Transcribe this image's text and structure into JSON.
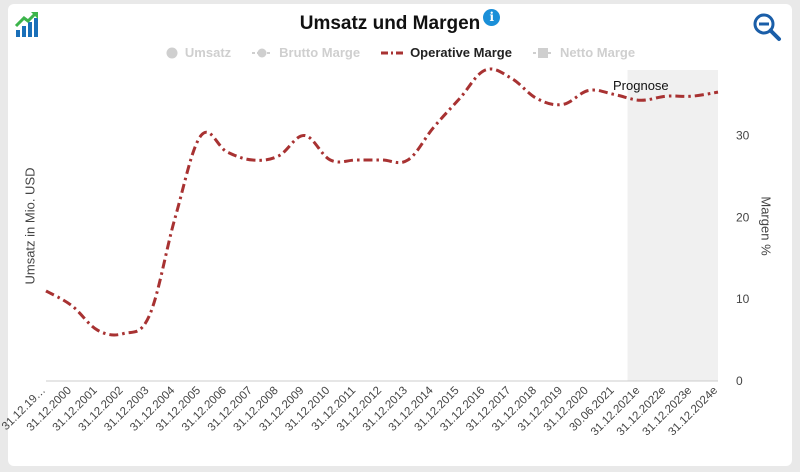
{
  "header": {
    "title": "Umsatz und Margen",
    "info_glyph": "i"
  },
  "legend": [
    {
      "label": "Umsatz",
      "state": "hidden",
      "icon": "circle-marker-icon"
    },
    {
      "label": "Brutto Marge",
      "state": "hidden",
      "icon": "line-circle-marker-icon"
    },
    {
      "label": "Operative Marge",
      "state": "visible",
      "icon": "dash-dot-line-icon"
    },
    {
      "label": "Netto Marge",
      "state": "hidden",
      "icon": "square-marker-icon"
    }
  ],
  "zoom_icon": "zoom-out-icon",
  "logo_icon": "growth-chart-logo-icon",
  "forecast_label": "Prognose",
  "chart_data": {
    "type": "line",
    "ylabel_left": "Umsatz in Mio. USD",
    "ylabel_right": "Margen %",
    "ylim_right": [
      0,
      38
    ],
    "yticks_right": [
      0,
      10,
      20,
      30
    ],
    "categories": [
      "31.12.19…",
      "31.12.2000",
      "31.12.2001",
      "31.12.2002",
      "31.12.2003",
      "31.12.2004",
      "31.12.2005",
      "31.12.2006",
      "31.12.2007",
      "31.12.2008",
      "31.12.2009",
      "31.12.2010",
      "31.12.2011",
      "31.12.2012",
      "31.12.2013",
      "31.12.2014",
      "31.12.2015",
      "31.12.2016",
      "31.12.2017",
      "31.12.2018",
      "31.12.2019",
      "31.12.2020",
      "30.06.2021",
      "31.12.2021e",
      "31.12.2022e",
      "31.12.2023e",
      "31.12.2024e"
    ],
    "forecast_start_index": 23,
    "series": [
      {
        "name": "Operative Marge",
        "color": "#a83232",
        "values": [
          11.0,
          9.2,
          6.2,
          5.8,
          8.0,
          20.0,
          30.0,
          28.0,
          27.0,
          27.5,
          30.0,
          27.0,
          27.0,
          27.0,
          27.0,
          31.0,
          34.5,
          38.0,
          37.0,
          34.5,
          33.8,
          35.5,
          35.0,
          34.3,
          34.8,
          34.8,
          35.3
        ]
      }
    ],
    "grid": false
  }
}
